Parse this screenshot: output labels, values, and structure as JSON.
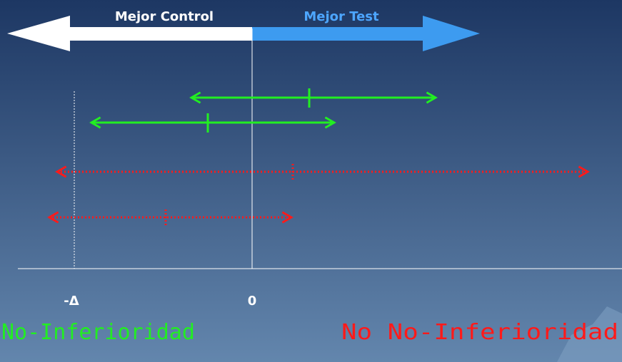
{
  "header": {
    "left_label": "Mejor Control",
    "right_label": "Mejor Test"
  },
  "axis": {
    "labels": [
      "-Δ",
      "0"
    ]
  },
  "conclusions": [
    "No-Inferioridad",
    "No No-Inferioridad"
  ]
}
